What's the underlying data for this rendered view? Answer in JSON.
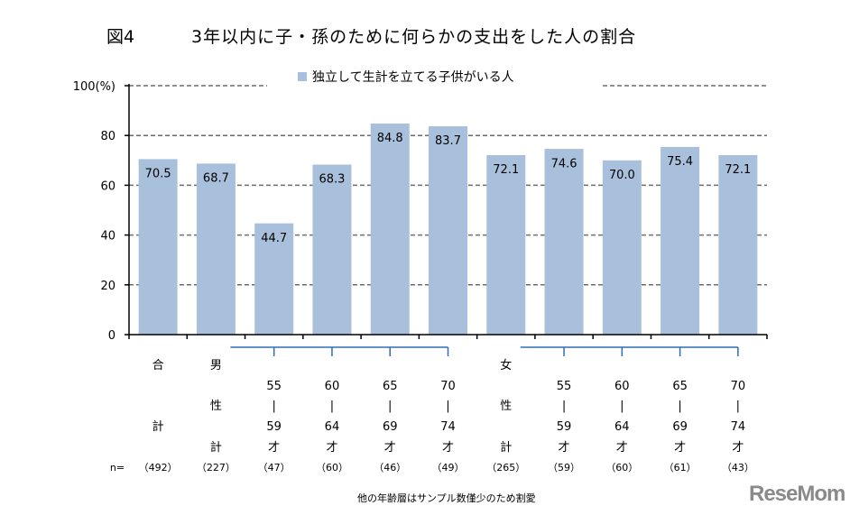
{
  "figure_label": "図4",
  "brand": "ReseMom",
  "note": "他の年齢層はサンプル数僅少のため割愛",
  "chart_data": {
    "type": "bar",
    "title": "3年以内に子・孫のために何らかの支出をした人の割合",
    "legend": [
      "独立して生計を立てる子供がいる人"
    ],
    "ylabel": "100(%)",
    "ylim": [
      0,
      100
    ],
    "yticks": [
      "0",
      "20",
      "40",
      "60",
      "80"
    ],
    "bar_color": "#a9c0dc",
    "gridline_color": "#6e6e6e",
    "bracket_color": "#2f6db5",
    "n_prefix": "n=",
    "values": [
      70.5,
      68.7,
      44.7,
      68.3,
      84.8,
      83.7,
      72.1,
      74.6,
      70.0,
      75.4,
      72.1
    ],
    "value_labels": [
      "70.5",
      "68.7",
      "44.7",
      "68.3",
      "84.8",
      "83.7",
      "72.1",
      "74.6",
      "70.0",
      "75.4",
      "72.1"
    ],
    "categories": [
      {
        "lines": [
          "合",
          "",
          "",
          "計",
          ""
        ],
        "n": "（492）"
      },
      {
        "lines": [
          "男",
          "",
          "性",
          "",
          "計"
        ],
        "n": "（227）"
      },
      {
        "lines": [
          "",
          "55",
          "|",
          "59",
          "才"
        ],
        "n": "（47）"
      },
      {
        "lines": [
          "",
          "60",
          "|",
          "64",
          "才"
        ],
        "n": "（60）"
      },
      {
        "lines": [
          "",
          "65",
          "|",
          "69",
          "才"
        ],
        "n": "（46）"
      },
      {
        "lines": [
          "",
          "70",
          "|",
          "74",
          "才"
        ],
        "n": "（49）"
      },
      {
        "lines": [
          "女",
          "",
          "性",
          "",
          "計"
        ],
        "n": "（265）"
      },
      {
        "lines": [
          "",
          "55",
          "|",
          "59",
          "才"
        ],
        "n": "（59）"
      },
      {
        "lines": [
          "",
          "60",
          "|",
          "64",
          "才"
        ],
        "n": "（60）"
      },
      {
        "lines": [
          "",
          "65",
          "|",
          "69",
          "才"
        ],
        "n": "（61）"
      },
      {
        "lines": [
          "",
          "70",
          "|",
          "74",
          "才"
        ],
        "n": "（43）"
      }
    ]
  }
}
